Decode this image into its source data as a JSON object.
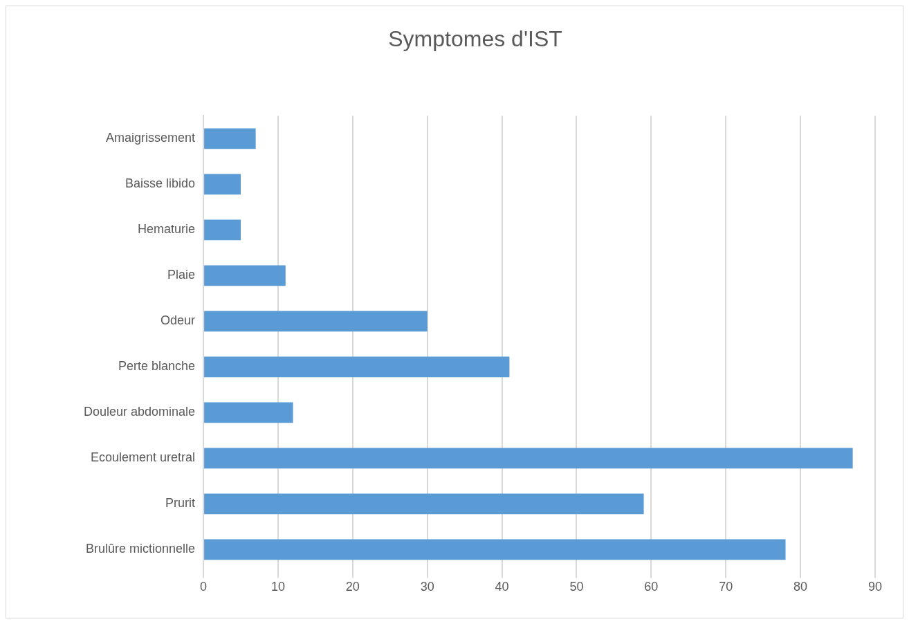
{
  "chart_data": {
    "type": "bar",
    "orientation": "horizontal",
    "title": "Symptomes d'IST",
    "categories": [
      "Amaigrissement",
      "Baisse libido",
      "Hematurie",
      "Plaie",
      "Odeur",
      "Perte blanche",
      "Douleur abdominale",
      "Ecoulement uretral",
      "Prurit",
      "Brulûre mictionnelle"
    ],
    "values": [
      7,
      5,
      5,
      11,
      30,
      41,
      12,
      87,
      59,
      78
    ],
    "color": "#5b9bd5",
    "xlim": [
      0,
      90
    ],
    "xticks": [
      0,
      10,
      20,
      30,
      40,
      50,
      60,
      70,
      80,
      90
    ],
    "grid": "x"
  }
}
